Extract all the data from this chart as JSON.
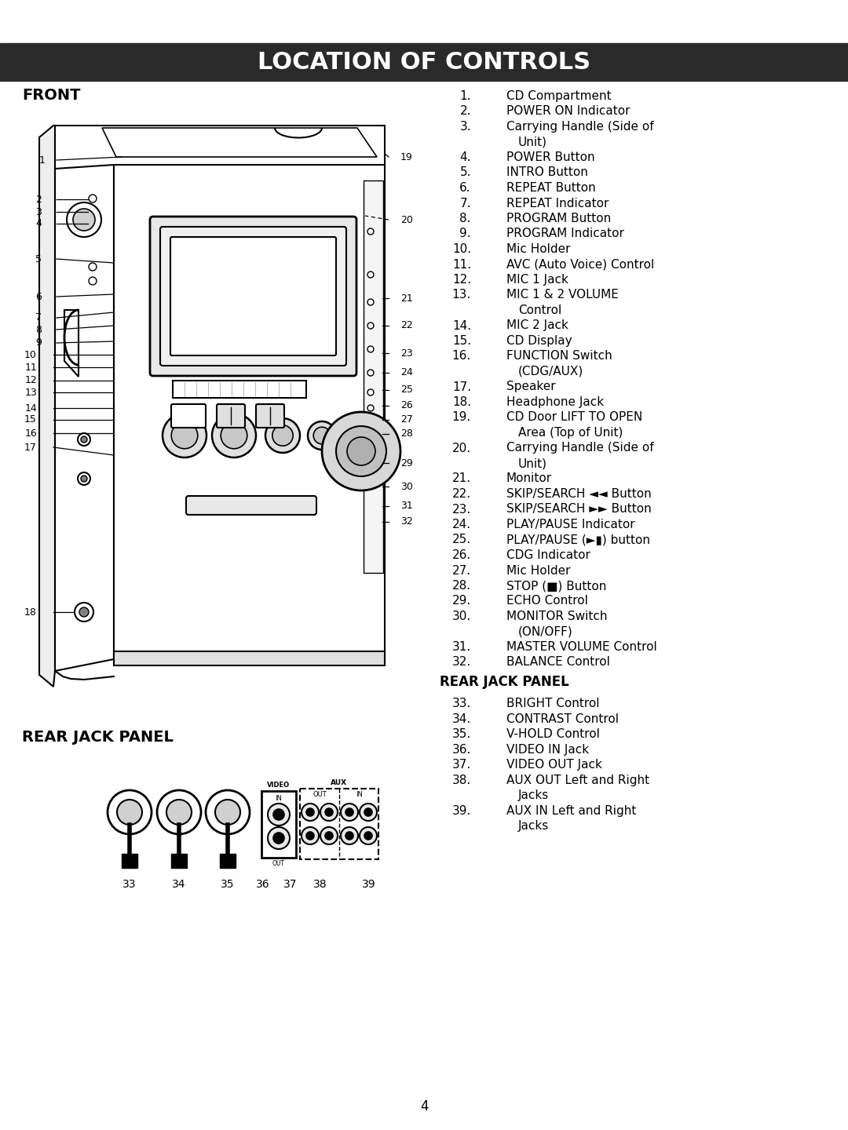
{
  "title": "LOCATION OF CONTROLS",
  "title_bg": "#2a2a2a",
  "title_color": "#ffffff",
  "front_label": "FRONT",
  "rear_label": "REAR JACK PANEL",
  "page_number": "4",
  "bg_color": "#ffffff",
  "text_color": "#000000",
  "right_col_items": [
    {
      "num": "1.",
      "text": "CD Compartment",
      "wrap": false
    },
    {
      "num": "2.",
      "text": "POWER ON Indicator",
      "wrap": false
    },
    {
      "num": "3.",
      "text": "Carrying Handle (Side of",
      "wrap": true,
      "wrap2": "Unit)"
    },
    {
      "num": "4.",
      "text": "POWER Button",
      "wrap": false
    },
    {
      "num": "5.",
      "text": "INTRO Button",
      "wrap": false
    },
    {
      "num": "6.",
      "text": "REPEAT Button",
      "wrap": false
    },
    {
      "num": "7.",
      "text": "REPEAT Indicator",
      "wrap": false
    },
    {
      "num": "8.",
      "text": "PROGRAM Button",
      "wrap": false
    },
    {
      "num": "9.",
      "text": "PROGRAM Indicator",
      "wrap": false
    },
    {
      "num": "10.",
      "text": "Mic Holder",
      "wrap": false
    },
    {
      "num": "11.",
      "text": "AVC (Auto Voice) Control",
      "wrap": false
    },
    {
      "num": "12.",
      "text": "MIC 1 Jack",
      "wrap": false
    },
    {
      "num": "13.",
      "text": "MIC 1 & 2 VOLUME",
      "wrap": true,
      "wrap2": "Control"
    },
    {
      "num": "14.",
      "text": "MIC 2 Jack",
      "wrap": false
    },
    {
      "num": "15.",
      "text": "CD Display",
      "wrap": false
    },
    {
      "num": "16.",
      "text": "FUNCTION Switch",
      "wrap": true,
      "wrap2": "(CDG/AUX)"
    },
    {
      "num": "17.",
      "text": "Speaker",
      "wrap": false
    },
    {
      "num": "18.",
      "text": "Headphone Jack",
      "wrap": false
    },
    {
      "num": "19.",
      "text": "CD Door LIFT TO OPEN",
      "wrap": true,
      "wrap2": "Area (Top of Unit)"
    },
    {
      "num": "20.",
      "text": "Carrying Handle (Side of",
      "wrap": true,
      "wrap2": "Unit)"
    },
    {
      "num": "21.",
      "text": "Monitor",
      "wrap": false
    },
    {
      "num": "22.",
      "text": "SKIP/SEARCH ◄◄ Button",
      "wrap": false
    },
    {
      "num": "23.",
      "text": "SKIP/SEARCH ►► Button",
      "wrap": false
    },
    {
      "num": "24.",
      "text": "PLAY/PAUSE Indicator",
      "wrap": false
    },
    {
      "num": "25.",
      "text": "PLAY/PAUSE (►▮) button",
      "wrap": false
    },
    {
      "num": "26.",
      "text": "CDG Indicator",
      "wrap": false
    },
    {
      "num": "27.",
      "text": "Mic Holder",
      "wrap": false
    },
    {
      "num": "28.",
      "text": "STOP (■) Button",
      "wrap": false
    },
    {
      "num": "29.",
      "text": "ECHO Control",
      "wrap": false
    },
    {
      "num": "30.",
      "text": "MONITOR Switch",
      "wrap": true,
      "wrap2": "(ON/OFF)"
    },
    {
      "num": "31.",
      "text": "MASTER VOLUME Control",
      "wrap": false
    },
    {
      "num": "32.",
      "text": "BALANCE Control",
      "wrap": false
    }
  ],
  "rear_col_items": [
    {
      "num": "33.",
      "text": "BRIGHT Control",
      "wrap": false
    },
    {
      "num": "34.",
      "text": "CONTRAST Control",
      "wrap": false
    },
    {
      "num": "35.",
      "text": "V-HOLD Control",
      "wrap": false
    },
    {
      "num": "36.",
      "text": "VIDEO IN Jack",
      "wrap": false
    },
    {
      "num": "37.",
      "text": "VIDEO OUT Jack",
      "wrap": false
    },
    {
      "num": "38.",
      "text": "AUX OUT Left and Right",
      "wrap": true,
      "wrap2": "Jacks"
    },
    {
      "num": "39.",
      "text": "AUX IN Left and Right",
      "wrap": true,
      "wrap2": "Jacks"
    }
  ]
}
